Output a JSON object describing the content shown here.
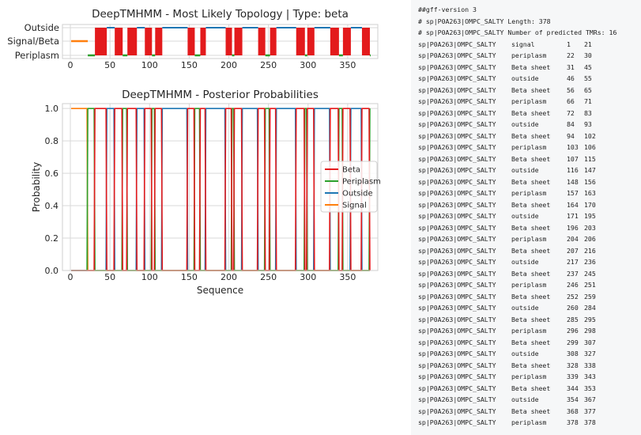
{
  "chart_data": [
    {
      "type": "topology",
      "title": "DeepTMHMM - Most Likely Topology | Type: beta",
      "tracks": [
        "Outside",
        "Signal/Beta",
        "Periplasm"
      ],
      "xlim": [
        -10,
        388
      ],
      "xticks": [
        0,
        50,
        100,
        150,
        200,
        250,
        300,
        350
      ],
      "colors": {
        "beta": "#e31a1c",
        "outside": "#1f77b4",
        "periplasm": "#2ca02c",
        "signal": "#ff7f0e"
      },
      "grid": true
    },
    {
      "type": "line",
      "title": "DeepTMHMM - Posterior Probabilities",
      "xlabel": "Sequence",
      "ylabel": "Probability",
      "xlim": [
        -10,
        388
      ],
      "ylim": [
        0,
        1.03
      ],
      "xticks": [
        0,
        50,
        100,
        150,
        200,
        250,
        300,
        350
      ],
      "yticks": [
        "0.0",
        "0.2",
        "0.4",
        "0.6",
        "0.8",
        "1.0"
      ],
      "legend_position": "center-right",
      "grid": true,
      "series": [
        {
          "name": "Beta",
          "color": "#e31a1c"
        },
        {
          "name": "Periplasm",
          "color": "#2ca02c"
        },
        {
          "name": "Outside",
          "color": "#1f77b4"
        },
        {
          "name": "Signal",
          "color": "#ff7f0e"
        }
      ]
    }
  ],
  "gff": {
    "header": [
      "##gff-version 3",
      "# sp|P0A263|OMPC_SALTY Length: 378",
      "# sp|P0A263|OMPC_SALTY Number of predicted TMRs: 16"
    ],
    "records": [
      {
        "seq": "sp|P0A263|OMPC_SALTY",
        "type": "signal",
        "start": 1,
        "end": 21
      },
      {
        "seq": "sp|P0A263|OMPC_SALTY",
        "type": "periplasm",
        "start": 22,
        "end": 30
      },
      {
        "seq": "sp|P0A263|OMPC_SALTY",
        "type": "Beta sheet",
        "start": 31,
        "end": 45
      },
      {
        "seq": "sp|P0A263|OMPC_SALTY",
        "type": "outside",
        "start": 46,
        "end": 55
      },
      {
        "seq": "sp|P0A263|OMPC_SALTY",
        "type": "Beta sheet",
        "start": 56,
        "end": 65
      },
      {
        "seq": "sp|P0A263|OMPC_SALTY",
        "type": "periplasm",
        "start": 66,
        "end": 71
      },
      {
        "seq": "sp|P0A263|OMPC_SALTY",
        "type": "Beta sheet",
        "start": 72,
        "end": 83
      },
      {
        "seq": "sp|P0A263|OMPC_SALTY",
        "type": "outside",
        "start": 84,
        "end": 93
      },
      {
        "seq": "sp|P0A263|OMPC_SALTY",
        "type": "Beta sheet",
        "start": 94,
        "end": 102
      },
      {
        "seq": "sp|P0A263|OMPC_SALTY",
        "type": "periplasm",
        "start": 103,
        "end": 106
      },
      {
        "seq": "sp|P0A263|OMPC_SALTY",
        "type": "Beta sheet",
        "start": 107,
        "end": 115
      },
      {
        "seq": "sp|P0A263|OMPC_SALTY",
        "type": "outside",
        "start": 116,
        "end": 147
      },
      {
        "seq": "sp|P0A263|OMPC_SALTY",
        "type": "Beta sheet",
        "start": 148,
        "end": 156
      },
      {
        "seq": "sp|P0A263|OMPC_SALTY",
        "type": "periplasm",
        "start": 157,
        "end": 163
      },
      {
        "seq": "sp|P0A263|OMPC_SALTY",
        "type": "Beta sheet",
        "start": 164,
        "end": 170
      },
      {
        "seq": "sp|P0A263|OMPC_SALTY",
        "type": "outside",
        "start": 171,
        "end": 195
      },
      {
        "seq": "sp|P0A263|OMPC_SALTY",
        "type": "Beta sheet",
        "start": 196,
        "end": 203
      },
      {
        "seq": "sp|P0A263|OMPC_SALTY",
        "type": "periplasm",
        "start": 204,
        "end": 206
      },
      {
        "seq": "sp|P0A263|OMPC_SALTY",
        "type": "Beta sheet",
        "start": 207,
        "end": 216
      },
      {
        "seq": "sp|P0A263|OMPC_SALTY",
        "type": "outside",
        "start": 217,
        "end": 236
      },
      {
        "seq": "sp|P0A263|OMPC_SALTY",
        "type": "Beta sheet",
        "start": 237,
        "end": 245
      },
      {
        "seq": "sp|P0A263|OMPC_SALTY",
        "type": "periplasm",
        "start": 246,
        "end": 251
      },
      {
        "seq": "sp|P0A263|OMPC_SALTY",
        "type": "Beta sheet",
        "start": 252,
        "end": 259
      },
      {
        "seq": "sp|P0A263|OMPC_SALTY",
        "type": "outside",
        "start": 260,
        "end": 284
      },
      {
        "seq": "sp|P0A263|OMPC_SALTY",
        "type": "Beta sheet",
        "start": 285,
        "end": 295
      },
      {
        "seq": "sp|P0A263|OMPC_SALTY",
        "type": "periplasm",
        "start": 296,
        "end": 298
      },
      {
        "seq": "sp|P0A263|OMPC_SALTY",
        "type": "Beta sheet",
        "start": 299,
        "end": 307
      },
      {
        "seq": "sp|P0A263|OMPC_SALTY",
        "type": "outside",
        "start": 308,
        "end": 327
      },
      {
        "seq": "sp|P0A263|OMPC_SALTY",
        "type": "Beta sheet",
        "start": 328,
        "end": 338
      },
      {
        "seq": "sp|P0A263|OMPC_SALTY",
        "type": "periplasm",
        "start": 339,
        "end": 343
      },
      {
        "seq": "sp|P0A263|OMPC_SALTY",
        "type": "Beta sheet",
        "start": 344,
        "end": 353
      },
      {
        "seq": "sp|P0A263|OMPC_SALTY",
        "type": "outside",
        "start": 354,
        "end": 367
      },
      {
        "seq": "sp|P0A263|OMPC_SALTY",
        "type": "Beta sheet",
        "start": 368,
        "end": 377
      },
      {
        "seq": "sp|P0A263|OMPC_SALTY",
        "type": "periplasm",
        "start": 378,
        "end": 378
      }
    ]
  }
}
